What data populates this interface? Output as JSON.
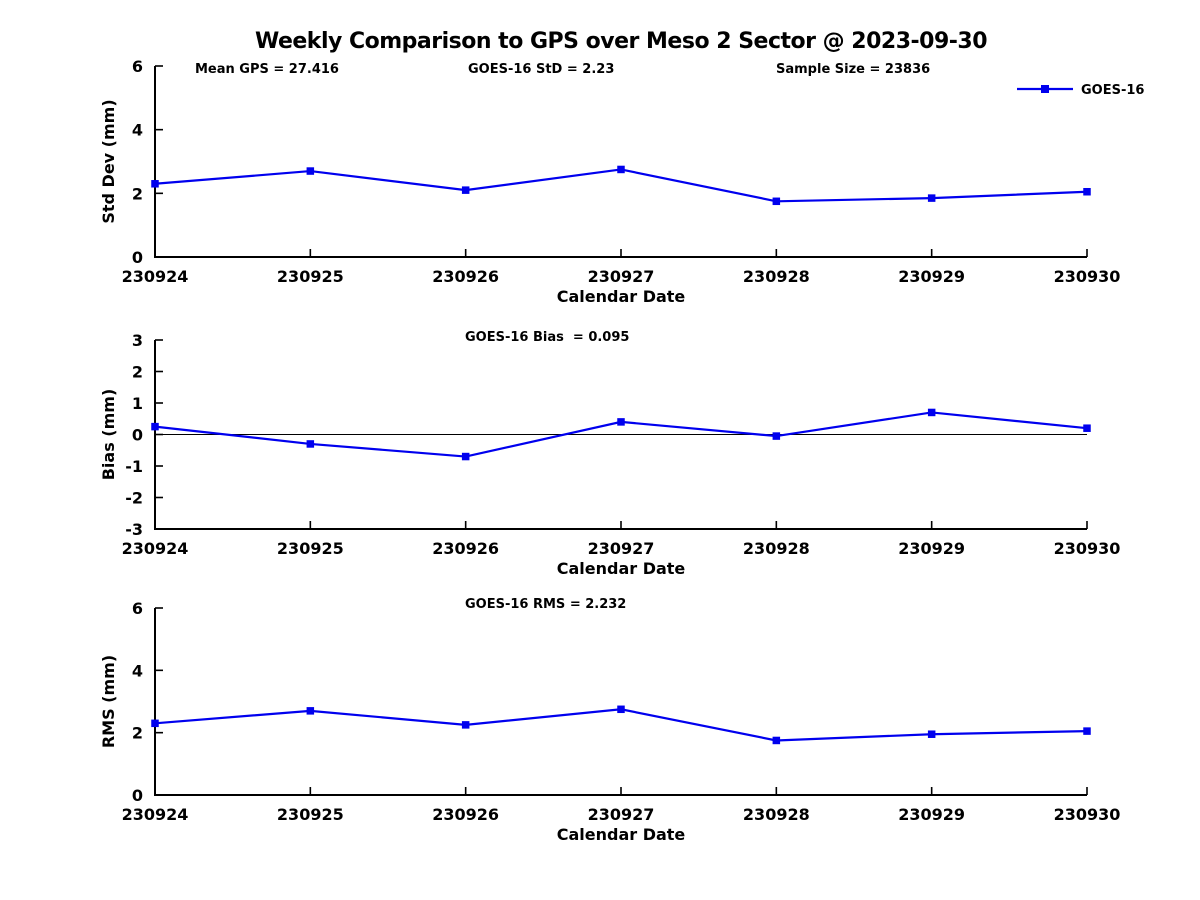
{
  "figure": {
    "title": "Weekly Comparison to GPS over Meso 2 Sector @ 2023-09-30",
    "legend": {
      "label": "GOES-16",
      "color": "#0000ee"
    },
    "annotations": {
      "mean_gps": "Mean GPS = 27.416",
      "std": "GOES-16 StD = 2.23",
      "sample_size": "Sample Size = 23836",
      "bias": "GOES-16 Bias  = 0.095",
      "rms": "GOES-16 RMS = 2.232"
    },
    "colors": {
      "series": "#0000ee",
      "axis": "#000000",
      "text": "#000000",
      "background": "#ffffff"
    }
  },
  "chart_data": [
    {
      "type": "line",
      "name": "std-dev-subplot",
      "categories": [
        "230924",
        "230925",
        "230926",
        "230927",
        "230928",
        "230929",
        "230930"
      ],
      "series": [
        {
          "name": "GOES-16",
          "values": [
            2.3,
            2.7,
            2.1,
            2.75,
            1.75,
            1.85,
            2.05
          ]
        }
      ],
      "xlabel": "Calendar Date",
      "ylabel": "Std Dev (mm)",
      "ylim": [
        0,
        6
      ],
      "yticks": [
        0,
        2,
        4,
        6
      ],
      "grid": false,
      "zero_line": false,
      "legend_position": "top-right",
      "marker": "square"
    },
    {
      "type": "line",
      "name": "bias-subplot",
      "categories": [
        "230924",
        "230925",
        "230926",
        "230927",
        "230928",
        "230929",
        "230930"
      ],
      "series": [
        {
          "name": "GOES-16",
          "values": [
            0.25,
            -0.3,
            -0.7,
            0.4,
            -0.05,
            0.7,
            0.2
          ]
        }
      ],
      "xlabel": "Calendar Date",
      "ylabel": "Bias (mm)",
      "ylim": [
        -3,
        3
      ],
      "yticks": [
        -3,
        -2,
        -1,
        0,
        1,
        2,
        3
      ],
      "grid": false,
      "zero_line": true,
      "legend_position": "none",
      "marker": "square"
    },
    {
      "type": "line",
      "name": "rms-subplot",
      "categories": [
        "230924",
        "230925",
        "230926",
        "230927",
        "230928",
        "230929",
        "230930"
      ],
      "series": [
        {
          "name": "GOES-16",
          "values": [
            2.3,
            2.7,
            2.25,
            2.75,
            1.75,
            1.95,
            2.05
          ]
        }
      ],
      "xlabel": "Calendar Date",
      "ylabel": "RMS (mm)",
      "ylim": [
        0,
        6
      ],
      "yticks": [
        0,
        2,
        4,
        6
      ],
      "grid": false,
      "zero_line": false,
      "legend_position": "none",
      "marker": "square"
    }
  ]
}
